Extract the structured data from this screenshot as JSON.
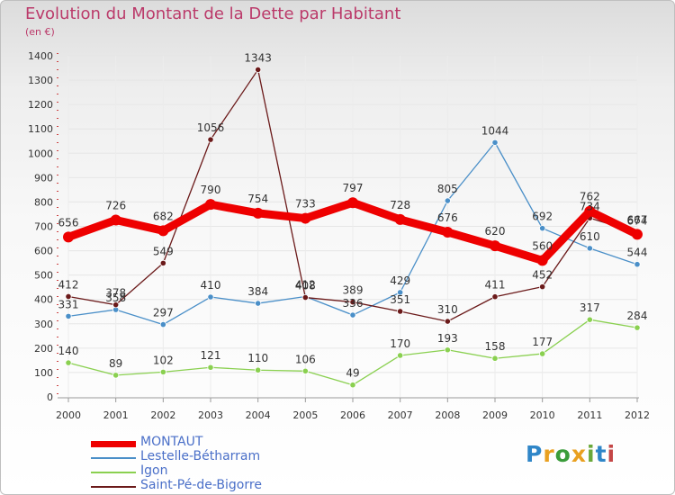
{
  "title": "Evolution du Montant de la Dette par Habitant",
  "unit": "(en €)",
  "logo": {
    "text": "Proxiti",
    "letters": [
      "P",
      "r",
      "o",
      "x",
      "i",
      "t",
      "i"
    ],
    "colors": [
      "#2f86c8",
      "#e9a020",
      "#3a9c3a",
      "#e9a020",
      "#6aa83a",
      "#2f86c8",
      "#c44646"
    ]
  },
  "chart_data": {
    "type": "line",
    "x": [
      "2000",
      "2001",
      "2002",
      "2003",
      "2004",
      "2005",
      "2006",
      "2007",
      "2008",
      "2009",
      "2010",
      "2011",
      "2012"
    ],
    "ylim": [
      0,
      1400
    ],
    "yticks": [
      0,
      100,
      200,
      300,
      400,
      500,
      600,
      700,
      800,
      900,
      1000,
      1100,
      1200,
      1300,
      1400
    ],
    "grid": true,
    "legend_position": "bottom-left",
    "series": [
      {
        "name": "MONTAUT",
        "color": "#ee0000",
        "emphasis": true,
        "values": [
          656,
          726,
          682,
          790,
          754,
          733,
          797,
          728,
          676,
          620,
          560,
          762,
          667
        ],
        "labels": [
          "656",
          "726",
          "682",
          "790",
          "754",
          "733",
          "797",
          "728",
          "676",
          "620",
          "560",
          "762",
          "667"
        ]
      },
      {
        "name": "Lestelle-Bétharram",
        "color": "#4a8fc8",
        "emphasis": false,
        "values": [
          331,
          358,
          297,
          410,
          384,
          412,
          336,
          429,
          805,
          1044,
          692,
          610,
          544
        ],
        "labels": [
          "331",
          "358",
          "297",
          "410",
          "384",
          "412",
          "336",
          "429",
          "805",
          "1044",
          "692",
          "610",
          "544"
        ]
      },
      {
        "name": "Igon",
        "color": "#8ad050",
        "emphasis": false,
        "values": [
          140,
          89,
          102,
          121,
          110,
          106,
          49,
          170,
          193,
          158,
          177,
          317,
          284
        ],
        "labels": [
          "140",
          "89",
          "102",
          "121",
          "110",
          "106",
          "49",
          "170",
          "193",
          "158",
          "177",
          "317",
          "284"
        ]
      },
      {
        "name": "Saint-Pé-de-Bigorre",
        "color": "#6b1a1a",
        "emphasis": false,
        "values": [
          412,
          378,
          549,
          1056,
          1343,
          408,
          389,
          351,
          310,
          411,
          452,
          734,
          674
        ],
        "labels": [
          "412",
          "378",
          "549",
          "1056",
          "1343",
          "408",
          "389",
          "351",
          "310",
          "411",
          "452",
          "734",
          "674"
        ]
      }
    ]
  }
}
